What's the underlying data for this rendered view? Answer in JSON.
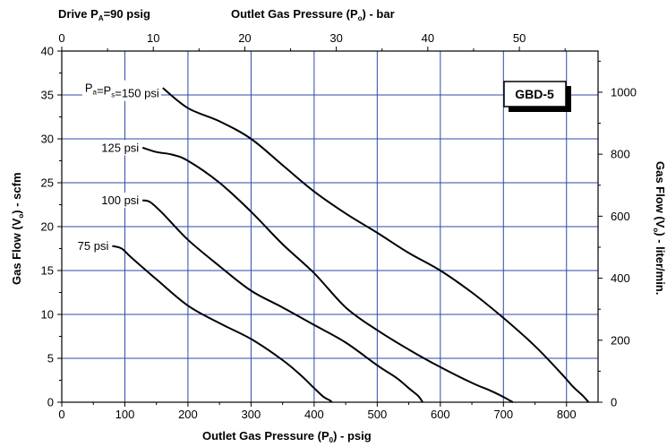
{
  "chart_data": {
    "type": "line",
    "header_left": {
      "pre": "Drive P",
      "sub": "A",
      "post": "=90 psig"
    },
    "top_axis_title": {
      "pre": "Outlet Gas Pressure (P",
      "sub": "o",
      "post": ") - bar"
    },
    "bottom_axis_title": {
      "pre": "Outlet Gas Pressure (P",
      "sub": "0",
      "post": ") - psig"
    },
    "left_axis_title": {
      "pre": "Gas Flow (V",
      "sub": "o",
      "post": ") - scfm"
    },
    "right_axis_title": {
      "pre": "Gas Flow (V",
      "sub": "o",
      "post": ") - liter/min."
    },
    "badge": "GBD-5",
    "xlim": [
      0,
      850
    ],
    "ylim": [
      0,
      40
    ],
    "top_xlim": [
      0,
      58.6
    ],
    "right_ylim": [
      0,
      1132.7
    ],
    "x_ticks": [
      "0",
      "100",
      "200",
      "300",
      "400",
      "500",
      "600",
      "700",
      "800"
    ],
    "y_ticks": [
      "0",
      "5",
      "10",
      "15",
      "20",
      "25",
      "30",
      "35",
      "40"
    ],
    "top_ticks": [
      "0",
      "10",
      "20",
      "30",
      "40",
      "50"
    ],
    "right_ticks": [
      "0",
      "200",
      "400",
      "600",
      "800",
      "1000"
    ],
    "grid": true,
    "series": [
      {
        "label_parts": [
          {
            "t": "P"
          },
          {
            "t": "a",
            "sub": true
          },
          {
            "t": "=P"
          },
          {
            "t": "s",
            "sub": true
          },
          {
            "t": "=150 psi"
          }
        ],
        "x": [
          160,
          200,
          250,
          300,
          350,
          400,
          450,
          500,
          550,
          600,
          650,
          700,
          750,
          790,
          810,
          825,
          835
        ],
        "y": [
          35.8,
          33.5,
          32,
          30,
          27,
          24,
          21.5,
          19.3,
          17,
          15,
          12.5,
          9.6,
          6.4,
          3.4,
          1.8,
          0.8,
          0
        ]
      },
      {
        "label_parts": [
          {
            "t": "125 psi"
          }
        ],
        "x": [
          128,
          150,
          175,
          200,
          250,
          300,
          350,
          400,
          450,
          500,
          550,
          600,
          650,
          680,
          700,
          710,
          715
        ],
        "y": [
          29,
          28.5,
          28.2,
          27.5,
          25,
          21.7,
          18,
          14.7,
          10.8,
          8.2,
          6,
          4,
          2.2,
          1.3,
          0.6,
          0.2,
          0
        ]
      },
      {
        "label_parts": [
          {
            "t": "100 psi"
          }
        ],
        "x": [
          128,
          140,
          160,
          200,
          250,
          300,
          350,
          400,
          450,
          500,
          530,
          550,
          565,
          572
        ],
        "y": [
          23,
          22.8,
          21.5,
          18.5,
          15.5,
          12.7,
          10.8,
          8.8,
          6.8,
          4.2,
          2.8,
          1.6,
          0.7,
          0
        ]
      },
      {
        "label_parts": [
          {
            "t": "75 psi"
          }
        ],
        "x": [
          80,
          95,
          110,
          150,
          200,
          250,
          300,
          350,
          380,
          400,
          415,
          425,
          428
        ],
        "y": [
          17.8,
          17.5,
          16.5,
          14,
          11,
          9,
          7.2,
          4.8,
          3,
          1.6,
          0.6,
          0.2,
          0
        ]
      }
    ]
  }
}
